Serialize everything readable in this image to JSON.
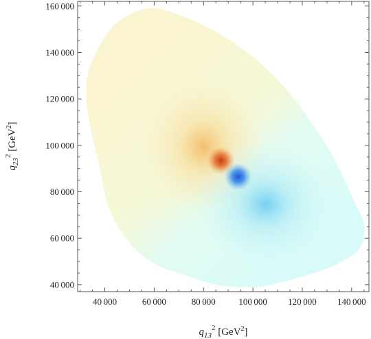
{
  "chart_data": {
    "type": "heatmap",
    "title": "",
    "xlabel": {
      "base": "q",
      "sub": "13",
      "sup": "2",
      "unit_pre": " [GeV",
      "unit_sup": "2",
      "unit_post": "]"
    },
    "ylabel": {
      "base": "q",
      "sub": "23",
      "sup": "2",
      "unit_pre": " [GeV",
      "unit_sup": "2",
      "unit_post": "]"
    },
    "xlim": [
      29000,
      147000
    ],
    "ylim": [
      37000,
      162000
    ],
    "x_ticks": [
      40000,
      60000,
      80000,
      100000,
      120000,
      140000
    ],
    "x_tick_labels": [
      "40 000",
      "60 000",
      "80 000",
      "100 000",
      "120 000",
      "140 000"
    ],
    "y_ticks": [
      40000,
      60000,
      80000,
      100000,
      120000,
      140000,
      160000
    ],
    "y_tick_labels": [
      "40 000",
      "60 000",
      "80 000",
      "100 000",
      "120 000",
      "140 000",
      "160 000"
    ],
    "region_boundary": [
      [
        57000,
        159000
      ],
      [
        68000,
        157000
      ],
      [
        85000,
        149000
      ],
      [
        100000,
        138000
      ],
      [
        112000,
        126000
      ],
      [
        123000,
        111000
      ],
      [
        133000,
        94000
      ],
      [
        141000,
        76000
      ],
      [
        145000,
        66000
      ],
      [
        144000,
        57000
      ],
      [
        138000,
        51000
      ],
      [
        125000,
        45000
      ],
      [
        105000,
        39500
      ],
      [
        95000,
        39000
      ],
      [
        85000,
        40000
      ],
      [
        73000,
        44000
      ],
      [
        60000,
        49000
      ],
      [
        50000,
        58000
      ],
      [
        42000,
        72000
      ],
      [
        38000,
        90000
      ],
      [
        33000,
        115000
      ],
      [
        33000,
        130000
      ],
      [
        38000,
        143000
      ],
      [
        45000,
        153000
      ]
    ],
    "hotspot_max": {
      "x": 87000,
      "y": 93500,
      "color": "#d84a1b"
    },
    "hotspot_min": {
      "x": 94000,
      "y": 86500,
      "color": "#1f5fe0"
    },
    "colors": {
      "positive_halo": "#f6c070",
      "negative_halo": "#6fd0f0",
      "background_pos": "#fbf3d2",
      "background_neg": "#dcfcfa",
      "frame": "#555555"
    }
  }
}
